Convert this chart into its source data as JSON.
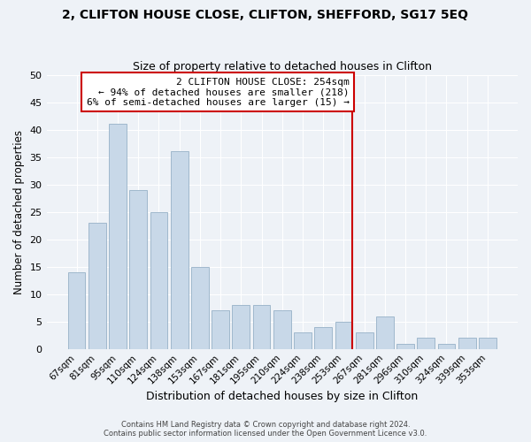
{
  "title": "2, CLIFTON HOUSE CLOSE, CLIFTON, SHEFFORD, SG17 5EQ",
  "subtitle": "Size of property relative to detached houses in Clifton",
  "xlabel": "Distribution of detached houses by size in Clifton",
  "ylabel": "Number of detached properties",
  "footer1": "Contains HM Land Registry data © Crown copyright and database right 2024.",
  "footer2": "Contains public sector information licensed under the Open Government Licence v3.0.",
  "bar_labels": [
    "67sqm",
    "81sqm",
    "95sqm",
    "110sqm",
    "124sqm",
    "138sqm",
    "153sqm",
    "167sqm",
    "181sqm",
    "195sqm",
    "210sqm",
    "224sqm",
    "238sqm",
    "253sqm",
    "267sqm",
    "281sqm",
    "296sqm",
    "310sqm",
    "324sqm",
    "339sqm",
    "353sqm"
  ],
  "bar_values": [
    14,
    23,
    41,
    29,
    25,
    36,
    15,
    7,
    8,
    8,
    7,
    3,
    4,
    5,
    3,
    6,
    1,
    2,
    1,
    2,
    2
  ],
  "bar_color": "#c8d8e8",
  "bar_edge_color": "#a0b8cc",
  "annotation_line_color": "#cc0000",
  "annotation_box_line1": "2 CLIFTON HOUSE CLOSE: 254sqm",
  "annotation_box_line2": "← 94% of detached houses are smaller (218)",
  "annotation_box_line3": "6% of semi-detached houses are larger (15) →",
  "annotation_box_facecolor": "#ffffff",
  "annotation_box_edgecolor": "#cc0000",
  "ylim": [
    0,
    50
  ],
  "yticks": [
    0,
    5,
    10,
    15,
    20,
    25,
    30,
    35,
    40,
    45,
    50
  ],
  "bg_color": "#eef2f7",
  "grid_color": "#ffffff",
  "title_fontsize": 10,
  "subtitle_fontsize": 9
}
